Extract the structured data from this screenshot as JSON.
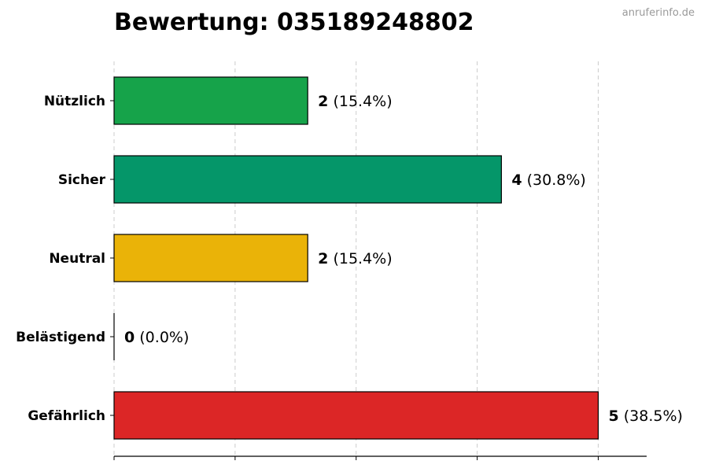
{
  "title": "Bewertung: 035189248802",
  "watermark": "anruferinfo.de",
  "chart_data": {
    "type": "bar",
    "orientation": "horizontal",
    "title": "Bewertung: 035189248802",
    "categories": [
      "Nützlich",
      "Sicher",
      "Neutral",
      "Belästigend",
      "Gefährlich"
    ],
    "values": [
      2,
      4,
      2,
      0,
      5
    ],
    "percent_labels": [
      "(15.4%)",
      "(30.8%)",
      "(15.4%)",
      "(0.0%)",
      "(38.5%)"
    ],
    "colors": [
      "#16a34a",
      "#059669",
      "#eab308",
      "#dc2626",
      "#dc2626"
    ],
    "xlim": [
      0,
      5.5
    ],
    "x_gridlines": [
      0,
      1.25,
      2.5,
      3.75,
      5
    ],
    "grid": true,
    "xlabel": "",
    "ylabel": ""
  }
}
